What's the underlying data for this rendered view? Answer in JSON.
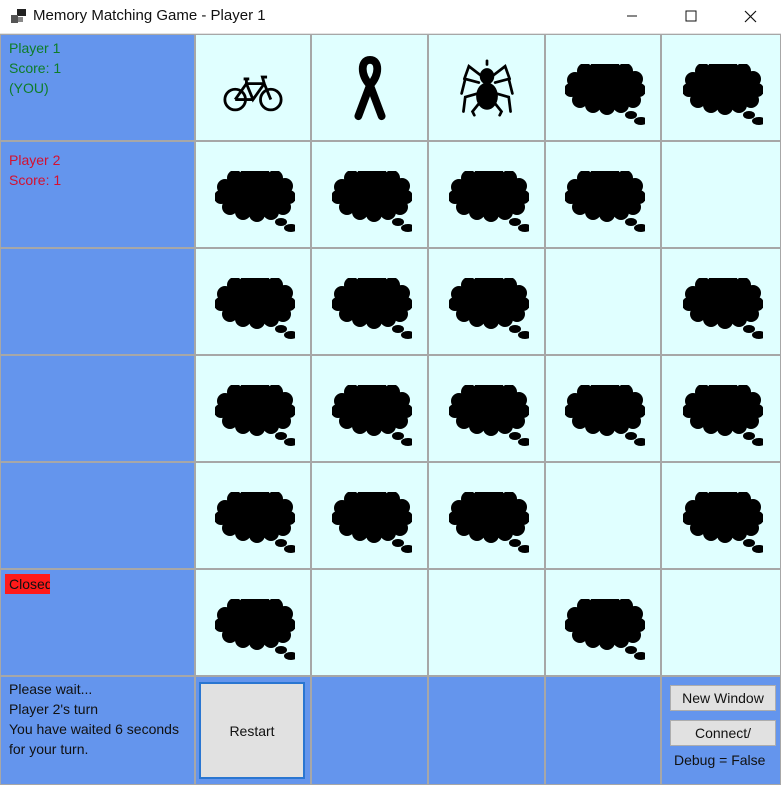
{
  "window": {
    "title": "Memory Matching Game - Player 1",
    "controls": [
      "minimize",
      "maximize",
      "close"
    ]
  },
  "players": [
    {
      "name": "Player 1",
      "score": "Score: 1",
      "tag": "(YOU)",
      "color": "#0e7d28"
    },
    {
      "name": "Player 2",
      "score": "Score: 1",
      "color": "#d41030"
    }
  ],
  "connection_status": "Closed",
  "board": {
    "cells": [
      [
        "bicycle-icon",
        "ribbon-icon",
        "spider-icon",
        "thought-bubble-icon",
        "thought-bubble-icon"
      ],
      [
        "thought-bubble-icon",
        "thought-bubble-icon",
        "thought-bubble-icon",
        "thought-bubble-icon",
        "empty"
      ],
      [
        "thought-bubble-icon",
        "thought-bubble-icon",
        "thought-bubble-icon",
        "empty",
        "thought-bubble-icon"
      ],
      [
        "thought-bubble-icon",
        "thought-bubble-icon",
        "thought-bubble-icon",
        "thought-bubble-icon",
        "thought-bubble-icon"
      ],
      [
        "thought-bubble-icon",
        "thought-bubble-icon",
        "thought-bubble-icon",
        "empty",
        "thought-bubble-icon"
      ],
      [
        "thought-bubble-icon",
        "empty",
        "empty",
        "thought-bubble-icon",
        "empty"
      ]
    ]
  },
  "status": {
    "line1": "Please wait...",
    "line2": "Player 2's turn",
    "line3": "You have waited 6 seconds",
    "line4": "for your turn."
  },
  "buttons": {
    "restart": "Restart",
    "new_window": "New Window",
    "connect": "Connect/"
  },
  "debug_label": "Debug = False",
  "colors": {
    "panel": "#6495ed",
    "cell": "#e0ffff",
    "closed_badge": "#ff1a1a"
  }
}
